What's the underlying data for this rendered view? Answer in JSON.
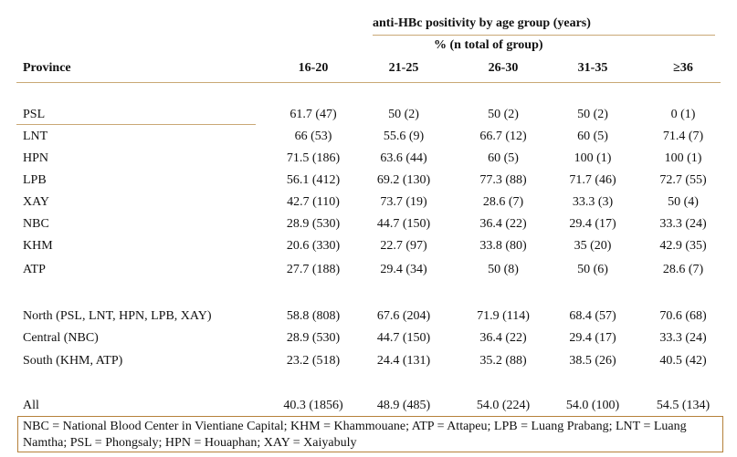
{
  "table": {
    "group_title": "anti-HBc positivity by age group (years)",
    "group_subtitle": "% (n total of group)",
    "col_province": "Province",
    "age_groups": [
      "16-20",
      "21-25",
      "26-30",
      "31-35",
      "≥36"
    ],
    "province_rows": [
      {
        "name": "PSL",
        "values": [
          "61.7 (47)",
          "50 (2)",
          "50 (2)",
          "50 (2)",
          "0 (1)"
        ]
      },
      {
        "name": "LNT",
        "values": [
          "66 (53)",
          "55.6 (9)",
          "66.7 (12)",
          "60 (5)",
          "71.4 (7)"
        ]
      },
      {
        "name": "HPN",
        "values": [
          "71.5 (186)",
          "63.6 (44)",
          "60 (5)",
          "100 (1)",
          "100 (1)"
        ]
      },
      {
        "name": "LPB",
        "values": [
          "56.1 (412)",
          "69.2 (130)",
          "77.3 (88)",
          "71.7 (46)",
          "72.7 (55)"
        ]
      },
      {
        "name": "XAY",
        "values": [
          "42.7 (110)",
          "73.7 (19)",
          "28.6 (7)",
          "33.3 (3)",
          "50 (4)"
        ]
      },
      {
        "name": "NBC",
        "values": [
          "28.9 (530)",
          "44.7 (150)",
          "36.4 (22)",
          "29.4 (17)",
          "33.3 (24)"
        ]
      },
      {
        "name": "KHM",
        "values": [
          "20.6 (330)",
          "22.7 (97)",
          "33.8 (80)",
          "35 (20)",
          "42.9 (35)"
        ]
      },
      {
        "name": "ATP",
        "values": [
          "27.7 (188)",
          "29.4 (34)",
          "50 (8)",
          "50 (6)",
          "28.6 (7)"
        ]
      }
    ],
    "region_rows": [
      {
        "name": "North (PSL, LNT, HPN, LPB, XAY)",
        "values": [
          "58.8 (808)",
          "67.6 (204)",
          "71.9 (114)",
          "68.4 (57)",
          "70.6 (68)"
        ]
      },
      {
        "name": "Central (NBC)",
        "values": [
          "28.9 (530)",
          "44.7 (150)",
          "36.4 (22)",
          "29.4 (17)",
          "33.3 (24)"
        ]
      },
      {
        "name": "South (KHM, ATP)",
        "values": [
          "23.2 (518)",
          "24.4 (131)",
          "35.2 (88)",
          "38.5 (26)",
          "40.5 (42)"
        ]
      }
    ],
    "all_row": {
      "name": "All",
      "values": [
        "40.3 (1856)",
        "48.9 (485)",
        "54.0 (224)",
        "54.0 (100)",
        "54.5 (134)"
      ]
    },
    "footnote": "NBC = National Blood Center in Vientiane Capital; KHM = Khammouane; ATP = Attapeu; LPB = Luang Prabang; LNT = Luang Namtha; PSL = Phongsaly; HPN = Houaphan; XAY = Xaiyabuly"
  }
}
